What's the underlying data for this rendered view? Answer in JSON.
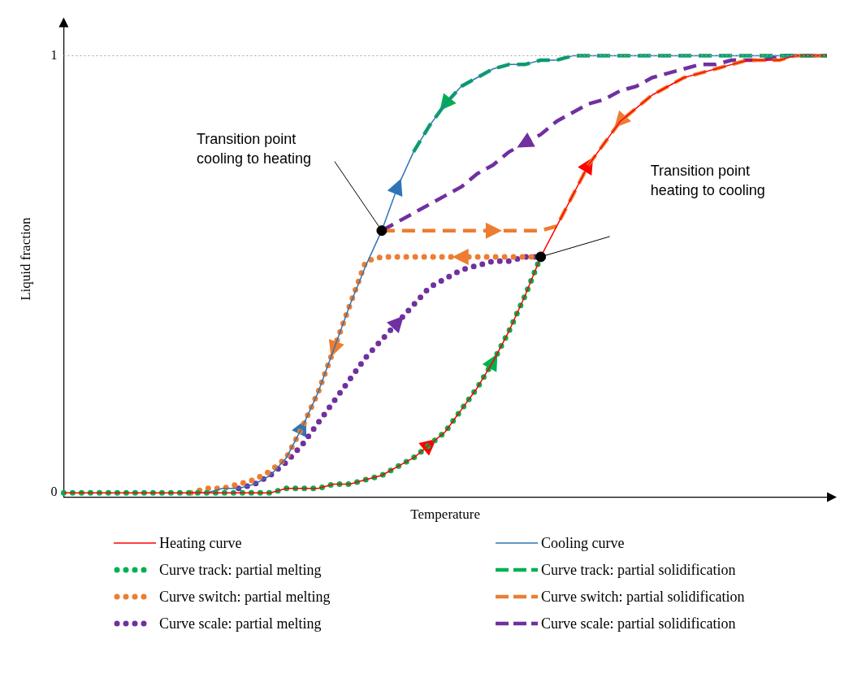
{
  "chart_data": {
    "type": "line",
    "xlabel": "Temperature",
    "ylabel": "Liquid fraction",
    "categories": [
      null,
      null,
      null,
      null,
      null,
      null,
      null,
      null,
      null,
      null,
      null,
      null,
      null,
      null,
      null,
      null,
      null,
      null,
      null,
      null,
      null,
      null,
      null,
      null,
      null,
      null,
      null,
      null,
      null,
      null,
      null,
      null,
      null,
      null,
      null,
      null,
      null,
      null,
      null,
      null,
      null,
      null,
      null,
      null,
      null,
      null,
      null,
      null,
      null
    ],
    "ylim": [
      -0.01,
      1.08
    ],
    "yticks": [
      0,
      1
    ],
    "tick_labels": "y",
    "grid": false,
    "legend": "bottom",
    "ref_lines": [
      {
        "axis": "y",
        "value": 1,
        "color": "#a6a6a6",
        "line_style": "dotted"
      }
    ],
    "annotations": [
      "Transition point cooling to heating",
      "Transition point heating to cooling"
    ],
    "series": [
      {
        "name": "Heating curve",
        "color": "#ff0000",
        "line_style": "solid",
        "values": [
          0,
          0,
          0,
          0,
          0,
          0,
          0,
          0,
          0,
          0,
          0,
          0,
          0,
          0,
          0.01,
          0.01,
          0.01,
          0.02,
          0.02,
          0.03,
          0.04,
          0.06,
          0.08,
          0.11,
          0.14,
          0.19,
          0.24,
          0.3,
          0.37,
          0.45,
          0.54,
          0.61,
          0.68,
          0.75,
          0.8,
          0.85,
          0.88,
          0.91,
          0.93,
          0.95,
          0.96,
          0.97,
          0.98,
          0.99,
          0.99,
          0.99,
          1,
          1,
          1
        ]
      },
      {
        "name": "Cooling curve",
        "color": "#2e75b6",
        "line_style": "solid",
        "values": [
          null,
          null,
          null,
          null,
          null,
          null,
          null,
          null,
          0,
          0,
          0.01,
          0.01,
          0.02,
          0.04,
          0.08,
          0.15,
          0.23,
          0.33,
          0.43,
          0.52,
          0.6,
          0.7,
          0.78,
          0.84,
          0.89,
          0.93,
          0.95,
          0.97,
          0.98,
          0.98,
          0.99,
          0.99,
          1,
          1,
          1,
          1,
          1,
          1,
          1,
          1,
          1,
          1,
          1,
          1,
          1,
          1,
          1,
          1,
          1
        ]
      },
      {
        "name": "Curve track: partial melting",
        "color": "#00b050",
        "line_style": "dotted",
        "values": [
          0,
          0,
          0,
          0,
          0,
          0,
          0,
          0,
          0,
          0,
          0,
          0,
          0,
          0,
          0.01,
          0.01,
          0.01,
          0.02,
          0.02,
          0.03,
          0.04,
          0.06,
          0.08,
          0.11,
          0.14,
          0.19,
          0.24,
          0.3,
          0.37,
          0.45,
          0.54,
          null,
          null,
          null,
          null,
          null,
          null,
          null,
          null,
          null,
          null,
          null,
          null,
          null,
          null,
          null,
          null,
          null,
          null
        ]
      },
      {
        "name": "Curve track: partial solidification",
        "color": "#00b050",
        "line_style": "dashed",
        "values": [
          null,
          null,
          null,
          null,
          null,
          null,
          null,
          null,
          null,
          null,
          null,
          null,
          null,
          null,
          null,
          null,
          null,
          null,
          null,
          null,
          null,
          null,
          0.78,
          0.84,
          0.89,
          0.93,
          0.95,
          0.97,
          0.98,
          0.98,
          0.99,
          0.99,
          1,
          1,
          1,
          1,
          1,
          1,
          1,
          1,
          1,
          1,
          1,
          1,
          1,
          1,
          1,
          1,
          1
        ]
      },
      {
        "name": "Curve switch: partial melting",
        "color": "#ed7d31",
        "line_style": "dotted",
        "values": [
          null,
          null,
          null,
          null,
          null,
          null,
          null,
          null,
          0,
          0.01,
          0.01,
          0.02,
          0.03,
          0.05,
          0.08,
          0.15,
          0.23,
          0.33,
          0.43,
          0.53,
          0.54,
          0.54,
          0.54,
          0.54,
          0.54,
          0.54,
          0.54,
          0.54,
          0.54,
          0.54,
          0.54,
          null,
          null,
          null,
          null,
          null,
          null,
          null,
          null,
          null,
          null,
          null,
          null,
          null,
          null,
          null,
          null,
          null,
          null
        ]
      },
      {
        "name": "Curve switch: partial solidification",
        "color": "#ed7d31",
        "line_style": "dashed",
        "values": [
          null,
          null,
          null,
          null,
          null,
          null,
          null,
          null,
          null,
          null,
          null,
          null,
          null,
          null,
          null,
          null,
          null,
          null,
          null,
          null,
          0.6,
          0.6,
          0.6,
          0.6,
          0.6,
          0.6,
          0.6,
          0.6,
          0.6,
          0.6,
          0.6,
          0.61,
          0.68,
          0.75,
          0.8,
          0.85,
          0.88,
          0.91,
          0.93,
          0.95,
          0.96,
          0.97,
          0.98,
          0.99,
          0.99,
          0.99,
          1,
          1,
          1
        ]
      },
      {
        "name": "Curve scale: partial melting",
        "color": "#7030a0",
        "line_style": "dotted",
        "values": [
          null,
          null,
          null,
          null,
          null,
          null,
          null,
          null,
          null,
          null,
          null,
          0.01,
          0.02,
          0.04,
          0.07,
          0.11,
          0.16,
          0.21,
          0.26,
          0.31,
          0.35,
          0.39,
          0.43,
          0.47,
          0.49,
          0.51,
          0.52,
          0.53,
          0.53,
          0.54,
          0.54,
          null,
          null,
          null,
          null,
          null,
          null,
          null,
          null,
          null,
          null,
          null,
          null,
          null,
          null,
          null,
          null,
          null,
          null
        ]
      },
      {
        "name": "Curve scale: partial solidification",
        "color": "#7030a0",
        "line_style": "dashed",
        "values": [
          null,
          null,
          null,
          null,
          null,
          null,
          null,
          null,
          null,
          null,
          null,
          null,
          null,
          null,
          null,
          null,
          null,
          null,
          null,
          null,
          0.6,
          0.62,
          0.64,
          0.66,
          0.68,
          0.7,
          0.73,
          0.75,
          0.78,
          0.8,
          0.82,
          0.85,
          0.87,
          0.89,
          0.9,
          0.92,
          0.93,
          0.95,
          0.96,
          0.97,
          0.98,
          0.98,
          0.99,
          0.99,
          0.99,
          1,
          1,
          1,
          1
        ]
      },
      {
        "type": "scatter",
        "color": "#000000",
        "marker": "circle",
        "values": [
          null,
          null,
          null,
          null,
          null,
          null,
          null,
          null,
          null,
          null,
          null,
          null,
          null,
          null,
          null,
          null,
          null,
          null,
          null,
          null,
          0.6,
          null,
          null,
          null,
          null,
          null,
          null,
          null,
          null,
          null,
          0.54,
          null,
          null,
          null,
          null,
          null,
          null,
          null,
          null,
          null,
          null,
          null,
          null,
          null,
          null,
          null,
          null,
          null,
          null
        ]
      }
    ]
  }
}
